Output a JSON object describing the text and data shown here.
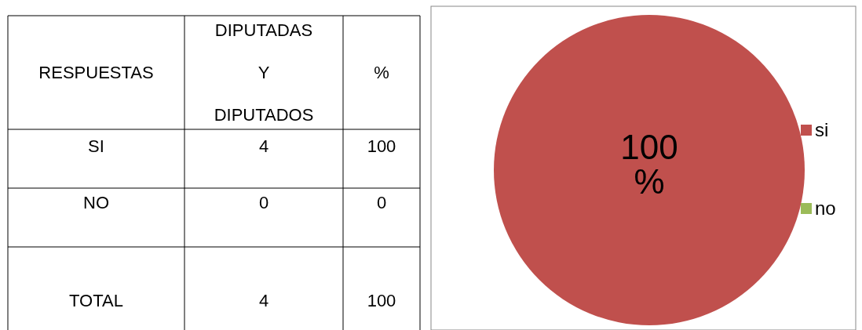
{
  "chart_data": [
    {
      "type": "other",
      "categories": [
        "RESPUESTAS",
        "DIPUTADAS Y DIPUTADOS",
        "%"
      ],
      "annotations": [
        "SI",
        "4",
        "100",
        "NO",
        "0",
        "0",
        "TOTAL",
        "4",
        "100"
      ]
    },
    {
      "type": "pie",
      "categories": [
        "si",
        "no"
      ],
      "values": [
        100,
        0
      ],
      "colors": [
        "#c0504d",
        "#9bbb59"
      ],
      "value_labels": [
        "100 %",
        null
      ],
      "legend": "right"
    }
  ]
}
